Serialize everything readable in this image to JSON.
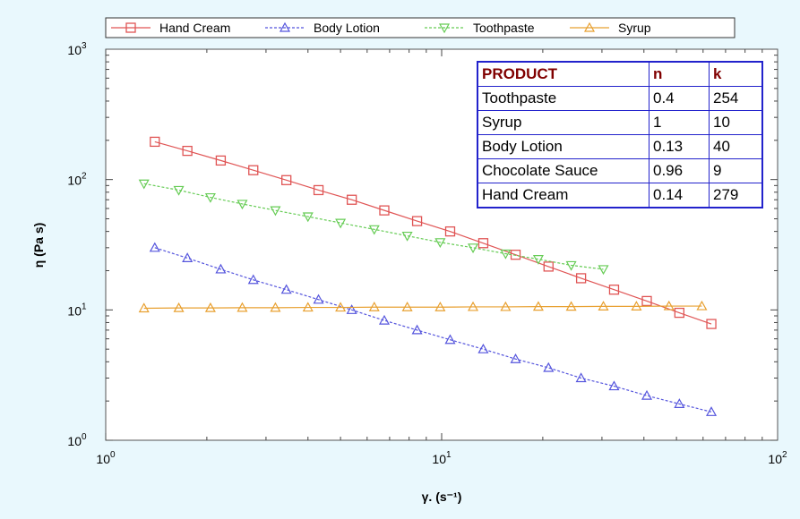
{
  "chart_data": {
    "type": "line",
    "xlabel": "γ. (s⁻¹)",
    "ylabel": "η (Pa s)",
    "x_scale": "log",
    "y_scale": "log",
    "xlim": [
      1,
      100
    ],
    "ylim": [
      1,
      1000
    ],
    "x_ticks": [
      {
        "base": "10",
        "exp": "0"
      },
      {
        "base": "10",
        "exp": "1"
      },
      {
        "base": "10",
        "exp": "2"
      }
    ],
    "y_ticks": [
      {
        "base": "10",
        "exp": "0"
      },
      {
        "base": "10",
        "exp": "1"
      },
      {
        "base": "10",
        "exp": "2"
      },
      {
        "base": "10",
        "exp": "3"
      }
    ],
    "legend_position": "top",
    "series": [
      {
        "name": "Hand Cream",
        "color": "#e05555",
        "marker": "square",
        "x": [
          1.4,
          1.75,
          2.2,
          2.75,
          3.45,
          4.3,
          5.4,
          6.75,
          8.45,
          10.6,
          13.3,
          16.6,
          20.8,
          26,
          32.6,
          40.8,
          51,
          63.5
        ],
        "y": [
          195,
          166,
          140,
          118,
          99,
          83,
          70,
          58,
          48,
          40,
          32.5,
          26.5,
          21.5,
          17.5,
          14.3,
          11.7,
          9.5,
          7.8
        ]
      },
      {
        "name": "Body Lotion",
        "color": "#5555dd",
        "marker": "triangle-up",
        "x": [
          1.4,
          1.75,
          2.2,
          2.75,
          3.45,
          4.3,
          5.4,
          6.75,
          8.45,
          10.6,
          13.3,
          16.6,
          20.8,
          26,
          32.6,
          40.8,
          51,
          63.5
        ],
        "y": [
          30,
          25,
          20.5,
          17,
          14.3,
          12,
          10,
          8.3,
          7,
          5.9,
          5,
          4.2,
          3.6,
          3,
          2.6,
          2.2,
          1.9,
          1.65
        ]
      },
      {
        "name": "Toothpaste",
        "color": "#66cc55",
        "marker": "triangle-down",
        "x": [
          1.3,
          1.65,
          2.05,
          2.55,
          3.2,
          4,
          5,
          6.3,
          7.9,
          9.9,
          12.4,
          15.5,
          19.4,
          24.3,
          30.3
        ],
        "y": [
          93,
          83,
          73,
          65,
          58,
          52,
          46.5,
          41.5,
          37,
          33,
          30,
          27,
          24.5,
          22,
          20.5
        ]
      },
      {
        "name": "Syrup",
        "color": "#e8a030",
        "marker": "triangle-up",
        "x": [
          1.3,
          1.65,
          2.05,
          2.55,
          3.2,
          4,
          5,
          6.3,
          7.9,
          9.9,
          12.4,
          15.5,
          19.4,
          24.3,
          30.3,
          38,
          47.5,
          59.5
        ],
        "y": [
          10.3,
          10.35,
          10.35,
          10.4,
          10.4,
          10.45,
          10.45,
          10.5,
          10.5,
          10.5,
          10.55,
          10.55,
          10.6,
          10.6,
          10.65,
          10.65,
          10.7,
          10.7
        ]
      }
    ]
  },
  "table": {
    "headers": [
      "PRODUCT",
      "n",
      "k"
    ],
    "rows": [
      [
        "Toothpaste",
        "0.4",
        "254"
      ],
      [
        "Syrup",
        "1",
        "10"
      ],
      [
        "Body Lotion",
        "0.13",
        "40"
      ],
      [
        "Chocolate Sauce",
        "0.96",
        "9"
      ],
      [
        "Hand  Cream",
        "0.14",
        "279"
      ]
    ]
  }
}
